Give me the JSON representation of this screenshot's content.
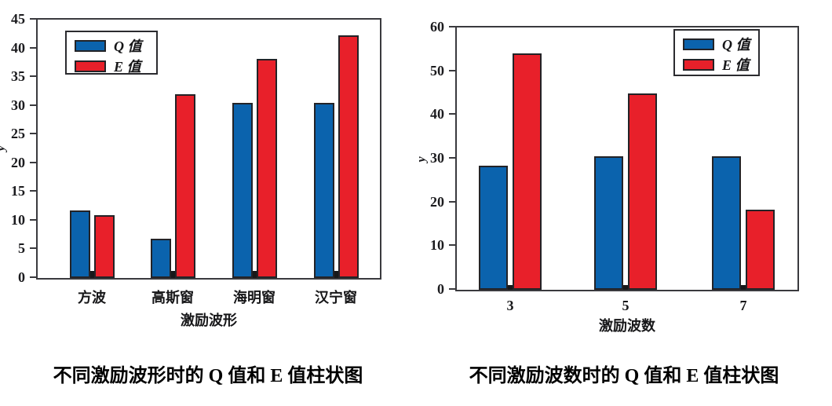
{
  "page": {
    "background": "#ffffff"
  },
  "colors": {
    "q_series_blue": "#0b63ad",
    "e_series_red": "#e8202a",
    "bar_border": "#232327",
    "axis_frame": "#3a3a3e",
    "text": "#161618"
  },
  "chart_data": [
    {
      "type": "bar",
      "title": "不同激励波形时的 Q 值和 E 值柱状图",
      "xlabel": "激励波形",
      "ylabel": "y",
      "categories": [
        "方波",
        "高斯窗",
        "海明窗",
        "汉宁窗"
      ],
      "series": [
        {
          "name": "Q 值",
          "color": "#0b63ad",
          "values": [
            11.8,
            6.8,
            30.5,
            30.5
          ]
        },
        {
          "name": "E 值",
          "color": "#e8202a",
          "values": [
            11.0,
            32.0,
            38.2,
            42.2
          ]
        }
      ],
      "ylim": [
        0,
        45
      ],
      "yticks": [
        0,
        5,
        10,
        15,
        20,
        25,
        30,
        35,
        40,
        45
      ],
      "grid": false,
      "legend_position": "top-left"
    },
    {
      "type": "bar",
      "title": "不同激励波数时的 Q 值和 E 值柱状图",
      "xlabel": "激励波数",
      "ylabel": "y",
      "categories": [
        "3",
        "5",
        "7"
      ],
      "series": [
        {
          "name": "Q 值",
          "color": "#0b63ad",
          "values": [
            28.3,
            30.5,
            30.5
          ]
        },
        {
          "name": "E 值",
          "color": "#e8202a",
          "values": [
            54.0,
            45.0,
            18.3
          ]
        }
      ],
      "ylim": [
        0,
        60
      ],
      "yticks": [
        0,
        10,
        20,
        30,
        40,
        50,
        60
      ],
      "grid": false,
      "legend_position": "top-right"
    }
  ]
}
